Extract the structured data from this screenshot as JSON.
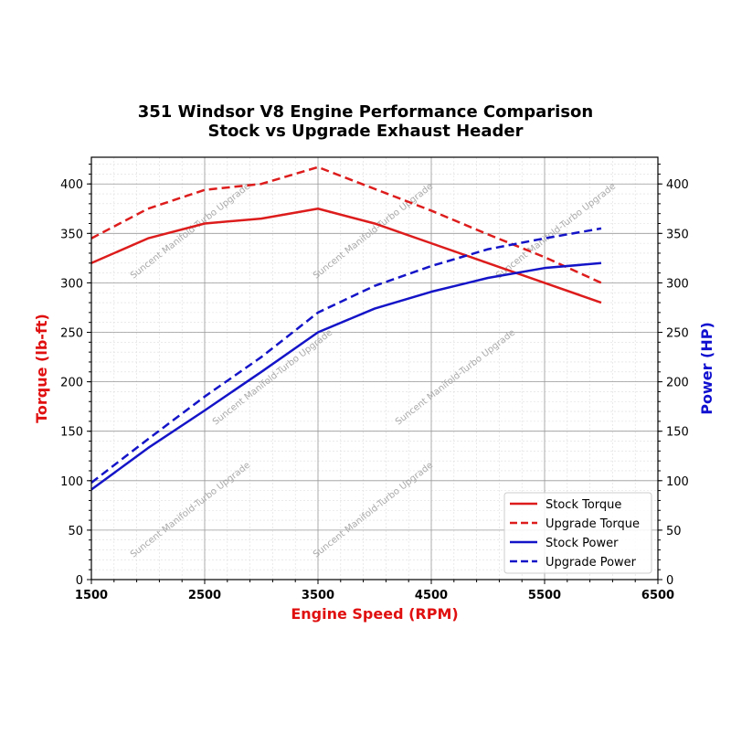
{
  "chart_data": {
    "type": "line",
    "title": "351 Windsor V8 Engine Performance Comparison",
    "subtitle": "Stock vs Upgrade Exhaust Header",
    "xlabel": "Engine Speed (RPM)",
    "ylabel_left": "Torque (lb-ft)",
    "ylabel_right": "Power (HP)",
    "xlim": [
      1500,
      6500
    ],
    "ylim": [
      0,
      427
    ],
    "x_ticks": [
      "1500",
      "2500",
      "3500",
      "4500",
      "5500",
      "6500"
    ],
    "y_ticks": [
      "0",
      "50",
      "100",
      "150",
      "200",
      "250",
      "300",
      "350",
      "400"
    ],
    "grid": true,
    "legend_position": "lower-right",
    "watermark": "Suncent Manifold-Turbo Upgrade",
    "x": [
      1500,
      2000,
      2500,
      3000,
      3500,
      4000,
      4500,
      5000,
      5500,
      6000
    ],
    "series": [
      {
        "name": "Stock Torque",
        "axis": "left",
        "color": "#dd1c1c",
        "dash": false,
        "values": [
          320,
          345,
          360,
          365,
          375,
          360,
          340,
          320,
          300,
          280
        ]
      },
      {
        "name": "Upgrade Torque",
        "axis": "left",
        "color": "#dd1c1c",
        "dash": true,
        "values": [
          345,
          375,
          394,
          400,
          417,
          395,
          373,
          349,
          326,
          300
        ]
      },
      {
        "name": "Stock Power",
        "axis": "right",
        "color": "#1414c8",
        "dash": false,
        "values": [
          91,
          133,
          171,
          210,
          250,
          274,
          291,
          305,
          315,
          320
        ]
      },
      {
        "name": "Upgrade Power",
        "axis": "right",
        "color": "#1414c8",
        "dash": true,
        "values": [
          98,
          142,
          185,
          225,
          270,
          297,
          317,
          334,
          345,
          355
        ]
      }
    ],
    "left_label_color": "#e01010",
    "right_label_color": "#1010d0",
    "xlabel_color": "#e01010"
  }
}
